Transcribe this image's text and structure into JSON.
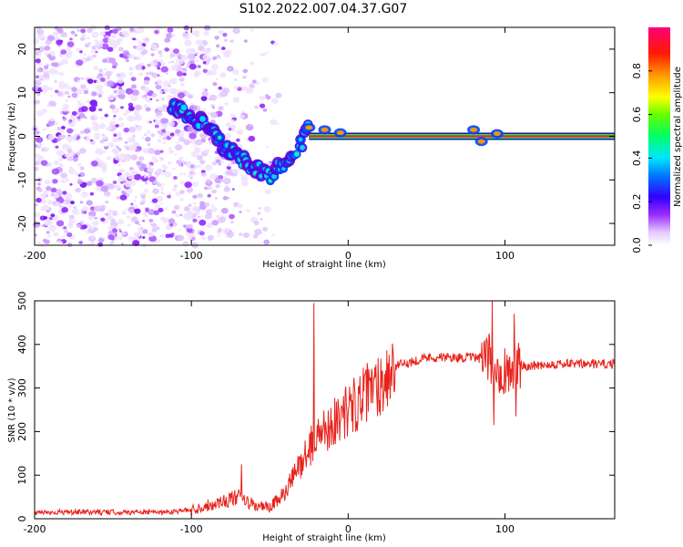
{
  "figure": {
    "title": "S102.2022.007.04.37.G07"
  },
  "chart_data": [
    {
      "type": "heatmap",
      "xlabel": "Height of straight line (km)",
      "ylabel": "Frequency (Hz)",
      "xlim": [
        -200,
        170
      ],
      "ylim": [
        -25,
        25
      ],
      "x_ticks": [
        -200,
        -100,
        0,
        100
      ],
      "y_ticks": [
        -20,
        -10,
        0,
        10,
        20
      ],
      "colorbar": {
        "label": "Normalized spectral amplitude",
        "range": [
          0,
          1
        ],
        "ticks": [
          "0.0",
          "0.2",
          "0.4",
          "0.6",
          "0.8"
        ],
        "tick_values": [
          0,
          0.2,
          0.4,
          0.6,
          0.8
        ],
        "colormap": "white-purple-blue-cyan-green-yellow-orange-red-magenta"
      },
      "ridge": {
        "description_points_x": [
          -110,
          -100,
          -90,
          -80,
          -70,
          -60,
          -50,
          -40,
          -30,
          -25,
          -20,
          -15,
          -10,
          -5,
          0,
          10,
          30,
          50,
          75,
          80,
          85,
          90,
          95,
          100,
          170
        ],
        "description_points_y": [
          6,
          5,
          2,
          -2,
          -5,
          -7,
          -9,
          -6,
          -2,
          2,
          3,
          1,
          2,
          0,
          1,
          0,
          0,
          0,
          0,
          1,
          0,
          0,
          0,
          0,
          0
        ]
      },
      "noise_region_x": [
        -200,
        -100
      ]
    },
    {
      "type": "line",
      "xlabel": "Height of straight line (km)",
      "ylabel": "SNR (10 * v/v)",
      "xlim": [
        -200,
        170
      ],
      "ylim": [
        0,
        500
      ],
      "x_ticks": [
        -200,
        -100,
        0,
        100
      ],
      "y_ticks": [
        0,
        100,
        200,
        300,
        400,
        500
      ],
      "series": [
        {
          "color": "#e8231c",
          "envelope_x": [
            -200,
            -120,
            -100,
            -90,
            -80,
            -70,
            -60,
            -50,
            -40,
            -30,
            -20,
            -10,
            0,
            10,
            20,
            30,
            50,
            80,
            90,
            95,
            100,
            110,
            130,
            170
          ],
          "envelope_y": [
            15,
            15,
            20,
            30,
            40,
            50,
            30,
            25,
            60,
            130,
            190,
            220,
            250,
            280,
            310,
            350,
            370,
            370,
            365,
            350,
            340,
            350,
            355,
            355
          ],
          "spikes": [
            {
              "x": -68,
              "y": 125
            },
            {
              "x": -22,
              "y": 495
            },
            {
              "x": 92,
              "y": 500
            },
            {
              "x": 93,
              "y": 215
            },
            {
              "x": 106,
              "y": 470
            },
            {
              "x": 107,
              "y": 235
            }
          ]
        }
      ]
    }
  ]
}
